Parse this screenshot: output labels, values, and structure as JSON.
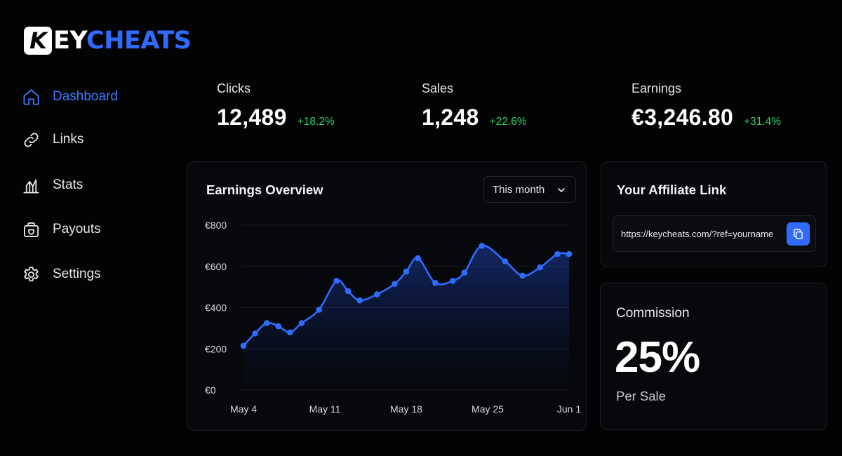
{
  "brand": {
    "logo_letter": "K",
    "logo_mid": "EY",
    "logo_accent": "CHEATS",
    "accent_color": "#2f6bff"
  },
  "sidebar": {
    "items": [
      {
        "label": "Dashboard",
        "icon": "home-icon",
        "active": true
      },
      {
        "label": "Links",
        "icon": "link-icon",
        "active": false
      },
      {
        "label": "Stats",
        "icon": "stats-icon",
        "active": false
      },
      {
        "label": "Payouts",
        "icon": "wallet-icon",
        "active": false
      },
      {
        "label": "Settings",
        "icon": "gear-icon",
        "active": false
      }
    ]
  },
  "stats": [
    {
      "label": "Clicks",
      "value": "12,489",
      "change": "+18.2%"
    },
    {
      "label": "Sales",
      "value": "1,248",
      "change": "+22.6%"
    },
    {
      "label": "Earnings",
      "value": "€3,246.80",
      "change": "+31.4%"
    }
  ],
  "earnings_card": {
    "title": "Earnings Overview",
    "period_select": "This month"
  },
  "chart_data": {
    "type": "area",
    "title": "Earnings Overview",
    "xlabel": "",
    "ylabel": "",
    "ylim": [
      0,
      800
    ],
    "yticks": [
      "€0",
      "€200",
      "€400",
      "€600",
      "€800"
    ],
    "ytick_values": [
      0,
      200,
      400,
      600,
      800
    ],
    "xticks": [
      "May 4",
      "May 11",
      "May 18",
      "May 25",
      "Jun 1"
    ],
    "xtick_days": [
      4,
      11,
      18,
      25,
      32
    ],
    "grid": true,
    "line_color": "#2f6bff",
    "series": [
      {
        "name": "",
        "x": [
          4,
          5,
          6,
          7,
          8,
          9,
          10.5,
          12,
          13,
          14,
          15.5,
          17,
          18,
          19,
          20.5,
          22,
          23,
          24.5,
          26.5,
          28,
          29.5,
          31,
          32
        ],
        "values": [
          215,
          275,
          325,
          310,
          280,
          325,
          390,
          530,
          480,
          435,
          465,
          515,
          575,
          640,
          520,
          530,
          570,
          700,
          625,
          555,
          595,
          660,
          660
        ]
      }
    ]
  },
  "affiliate_card": {
    "title": "Your Affiliate Link",
    "url": "https://keycheats.com/?ref=yourname"
  },
  "commission_card": {
    "label": "Commission",
    "value": "25%",
    "sub": "Per Sale"
  }
}
